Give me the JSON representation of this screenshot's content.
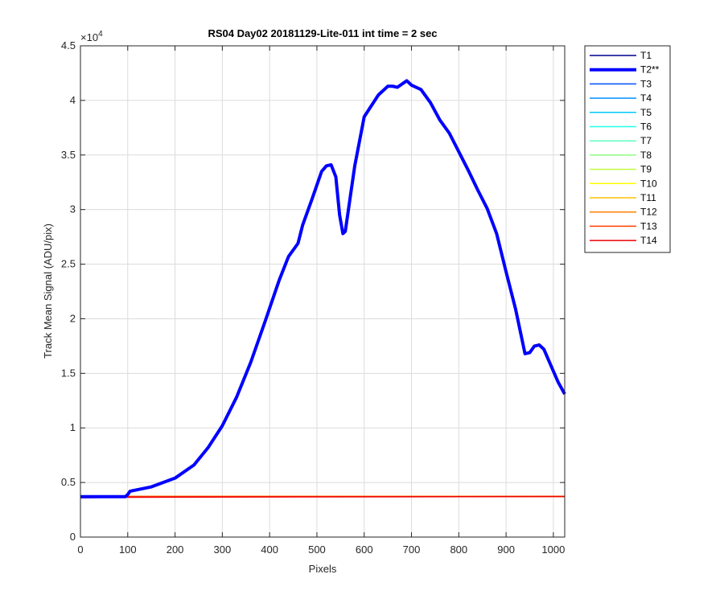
{
  "chart_data": {
    "type": "line",
    "title": "RS04 Day02 20181129-Lite-011 int time = 2 sec",
    "xlabel": "Pixels",
    "ylabel": "Track Mean Signal (ADU/pix)",
    "xlim": [
      0,
      1024
    ],
    "ylim": [
      0,
      45000
    ],
    "xticks": [
      0,
      100,
      200,
      300,
      400,
      500,
      600,
      700,
      800,
      900,
      1000
    ],
    "yticks": [
      0,
      5000,
      10000,
      15000,
      20000,
      25000,
      30000,
      35000,
      40000,
      45000
    ],
    "ytick_labels": [
      "0",
      "0.5",
      "1",
      "1.5",
      "2",
      "2.5",
      "3",
      "3.5",
      "4",
      "4.5"
    ],
    "y_exponent_base": "×10",
    "y_exponent_power": "4",
    "grid": true,
    "legend_position": "outside-top-right",
    "series": [
      {
        "name": "T1",
        "color": "#00008f",
        "x": [
          0,
          1024
        ],
        "y": [
          3720,
          3720
        ]
      },
      {
        "name": "T2**",
        "color": "#0000ff",
        "bold": true,
        "x": [
          0,
          95,
          100,
          105,
          150,
          200,
          240,
          270,
          300,
          330,
          360,
          390,
          420,
          440,
          460,
          470,
          490,
          510,
          520,
          530,
          540,
          548,
          555,
          560,
          570,
          580,
          600,
          630,
          650,
          660,
          670,
          680,
          690,
          700,
          720,
          740,
          760,
          780,
          800,
          820,
          840,
          860,
          880,
          900,
          920,
          940,
          950,
          960,
          970,
          980,
          990,
          1000,
          1010,
          1024
        ],
        "y": [
          3700,
          3700,
          3900,
          4200,
          4600,
          5400,
          6600,
          8200,
          10200,
          12800,
          16000,
          19700,
          23500,
          25700,
          26900,
          28600,
          31000,
          33500,
          34000,
          34100,
          33000,
          29500,
          27800,
          28000,
          31000,
          34000,
          38500,
          40500,
          41300,
          41300,
          41200,
          41500,
          41800,
          41400,
          41000,
          39800,
          38200,
          37000,
          35300,
          33600,
          31800,
          30100,
          27800,
          24300,
          20900,
          16800,
          16900,
          17500,
          17600,
          17200,
          16200,
          15200,
          14200,
          13100
        ]
      },
      {
        "name": "T3",
        "color": "#0050ff",
        "x": [
          0,
          1024
        ],
        "y": [
          3720,
          3720
        ]
      },
      {
        "name": "T4",
        "color": "#0090ff",
        "x": [
          0,
          1024
        ],
        "y": [
          3720,
          3720
        ]
      },
      {
        "name": "T5",
        "color": "#00c8ff",
        "x": [
          0,
          1024
        ],
        "y": [
          3720,
          3720
        ]
      },
      {
        "name": "T6",
        "color": "#20ffe8",
        "x": [
          0,
          1024
        ],
        "y": [
          3720,
          3720
        ]
      },
      {
        "name": "T7",
        "color": "#60ffc0",
        "x": [
          0,
          1024
        ],
        "y": [
          3720,
          3720
        ]
      },
      {
        "name": "T8",
        "color": "#90ff80",
        "x": [
          0,
          1024
        ],
        "y": [
          3720,
          3720
        ]
      },
      {
        "name": "T9",
        "color": "#c0ff40",
        "x": [
          0,
          1024
        ],
        "y": [
          3720,
          3720
        ]
      },
      {
        "name": "T10",
        "color": "#ffff00",
        "x": [
          0,
          1024
        ],
        "y": [
          3720,
          3720
        ]
      },
      {
        "name": "T11",
        "color": "#ffc000",
        "x": [
          0,
          1024
        ],
        "y": [
          3720,
          3720
        ]
      },
      {
        "name": "T12",
        "color": "#ff8000",
        "x": [
          0,
          1024
        ],
        "y": [
          3720,
          3720
        ]
      },
      {
        "name": "T13",
        "color": "#ff4000",
        "x": [
          0,
          1024
        ],
        "y": [
          3720,
          3720
        ]
      },
      {
        "name": "T14",
        "color": "#ee0000",
        "x": [
          0,
          100,
          1024
        ],
        "y": [
          3600,
          3650,
          3720
        ]
      }
    ]
  }
}
